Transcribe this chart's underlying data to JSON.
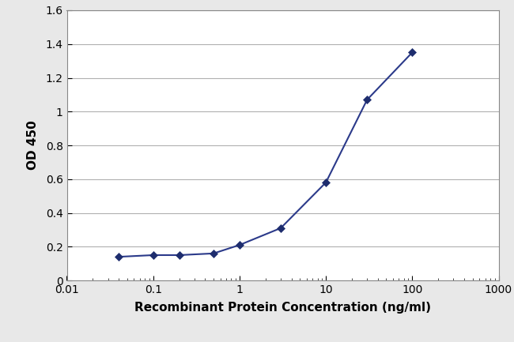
{
  "x_values": [
    0.04,
    0.1,
    0.2,
    0.5,
    1.0,
    3.0,
    10.0,
    30.0,
    100.0
  ],
  "y_values": [
    0.14,
    0.15,
    0.15,
    0.16,
    0.21,
    0.31,
    0.58,
    1.07,
    1.35
  ],
  "xlim": [
    0.01,
    1000
  ],
  "ylim": [
    0,
    1.6
  ],
  "yticks": [
    0,
    0.2,
    0.4,
    0.6,
    0.8,
    1.0,
    1.2,
    1.4,
    1.6
  ],
  "xticks": [
    0.01,
    0.1,
    1,
    10,
    100,
    1000
  ],
  "xtick_labels": [
    "0.01",
    "0.1",
    "1",
    "10",
    "100",
    "1000"
  ],
  "xlabel": "Recombinant Protein Concentration (ng/ml)",
  "ylabel": "OD 450",
  "line_color": "#2b3a8a",
  "marker_color": "#1e2d6e",
  "marker": "D",
  "marker_size": 5,
  "line_width": 1.5,
  "background_color": "#e8e8e8",
  "plot_bg_color": "#ffffff",
  "grid_color": "#b0b0b0",
  "grid_linewidth": 0.8,
  "xlabel_fontsize": 11,
  "ylabel_fontsize": 11,
  "tick_fontsize": 10,
  "label_color": "#000000",
  "spine_color": "#888888"
}
